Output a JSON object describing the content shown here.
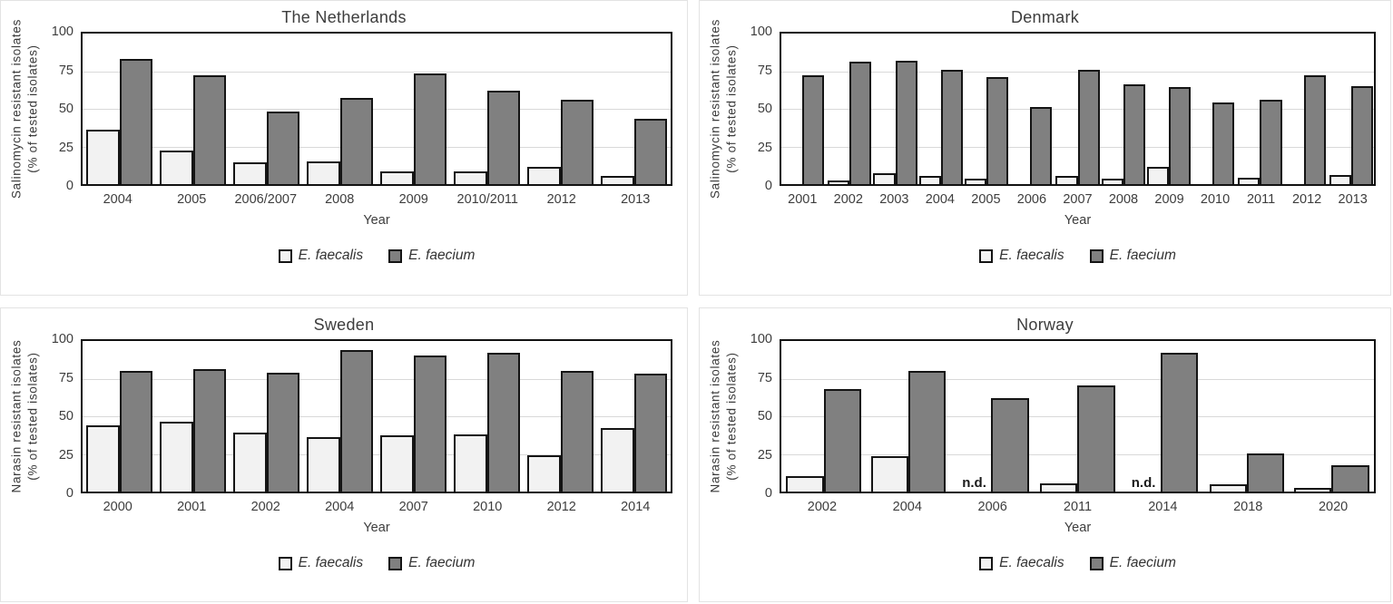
{
  "figure": {
    "colors": {
      "faecalis_fill": "#f2f2f2",
      "faecium_fill": "#808080",
      "bar_border": "#141414",
      "gridline": "#d9d9d9",
      "text": "#3d3d3d",
      "panel_border": "#e3e3e3"
    },
    "legend": {
      "items": [
        {
          "label": "E. faecalis",
          "color": "#f2f2f2"
        },
        {
          "label": "E. faecium",
          "color": "#808080"
        }
      ]
    }
  },
  "chart_data": [
    {
      "type": "bar",
      "title": "The Netherlands",
      "ylabel_lines": [
        "Salinomycin resistant isolates",
        "(% of tested isolates)"
      ],
      "ylabel": "Salinomycin resistant isolates (% of tested isolates)",
      "xlabel": "Year",
      "ylim": [
        0,
        100
      ],
      "yticks": [
        100,
        75,
        50,
        25,
        0
      ],
      "grid": "horizontal-25-50-75",
      "legend_position": "bottom",
      "categories": [
        "2004",
        "2005",
        "2006/2007",
        "2008",
        "2009",
        "2010/2011",
        "2012",
        "2013"
      ],
      "series": [
        {
          "name": "E. faecalis",
          "color": "#f2f2f2",
          "values": [
            35,
            21,
            13,
            14,
            7,
            7,
            10,
            4
          ]
        },
        {
          "name": "E. faecium",
          "color": "#808080",
          "values": [
            82,
            71,
            47,
            56,
            72,
            61,
            55,
            42
          ]
        }
      ]
    },
    {
      "type": "bar",
      "title": "Denmark",
      "ylabel_lines": [
        "Salinomycin resistant isolates",
        "(% of tested isolates)"
      ],
      "ylabel": "Salinomycin resistant isolates (% of tested isolates)",
      "xlabel": "Year",
      "ylim": [
        0,
        100
      ],
      "yticks": [
        100,
        75,
        50,
        25,
        0
      ],
      "grid": "horizontal-25-50-75",
      "legend_position": "bottom",
      "categories": [
        "2001",
        "2002",
        "2003",
        "2004",
        "2005",
        "2006",
        "2007",
        "2008",
        "2009",
        "2010",
        "2011",
        "2012",
        "2013"
      ],
      "series": [
        {
          "name": "E. faecalis",
          "color": "#f2f2f2",
          "values": [
            0,
            1.5,
            6,
            4,
            2.5,
            0,
            4,
            2.5,
            10.5,
            0,
            3,
            0,
            5
          ]
        },
        {
          "name": "E. faecium",
          "color": "#808080",
          "values": [
            71,
            80,
            81,
            75,
            70,
            50,
            75,
            65,
            63,
            53,
            55,
            71,
            64
          ]
        }
      ]
    },
    {
      "type": "bar",
      "title": "Sweden",
      "ylabel_lines": [
        "Narasin resistant isolates",
        "(% of tested isolates)"
      ],
      "ylabel": "Narasin resistant isolates (% of tested isolates)",
      "xlabel": "Year",
      "ylim": [
        0,
        100
      ],
      "yticks": [
        100,
        75,
        50,
        25,
        0
      ],
      "grid": "horizontal-25-50-75",
      "legend_position": "bottom",
      "categories": [
        "2000",
        "2001",
        "2002",
        "2004",
        "2007",
        "2010",
        "2012",
        "2014"
      ],
      "series": [
        {
          "name": "E. faecalis",
          "color": "#f2f2f2",
          "values": [
            43,
            45,
            38,
            35,
            36,
            37,
            23,
            41
          ]
        },
        {
          "name": "E. faecium",
          "color": "#808080",
          "values": [
            79,
            80,
            78,
            93,
            89,
            91,
            79,
            77
          ]
        }
      ]
    },
    {
      "type": "bar",
      "title": "Norway",
      "ylabel_lines": [
        "Narasin resistant isolates",
        "(% of tested isolates)"
      ],
      "ylabel": "Narasin resistant isolates (% of tested isolates)",
      "xlabel": "Year",
      "ylim": [
        0,
        100
      ],
      "yticks": [
        100,
        75,
        50,
        25,
        0
      ],
      "grid": "horizontal-25-50-75",
      "legend_position": "bottom",
      "no_data_label": "n.d.",
      "no_data_categories": [
        "2006",
        "2014"
      ],
      "categories": [
        "2002",
        "2004",
        "2006",
        "2011",
        "2014",
        "2018",
        "2020"
      ],
      "series": [
        {
          "name": "E. faecalis",
          "color": "#f2f2f2",
          "values": [
            9,
            22,
            null,
            4.5,
            null,
            3.5,
            1
          ]
        },
        {
          "name": "E. faecium",
          "color": "#808080",
          "values": [
            67,
            79,
            61,
            69,
            91,
            24,
            16
          ]
        }
      ]
    }
  ]
}
